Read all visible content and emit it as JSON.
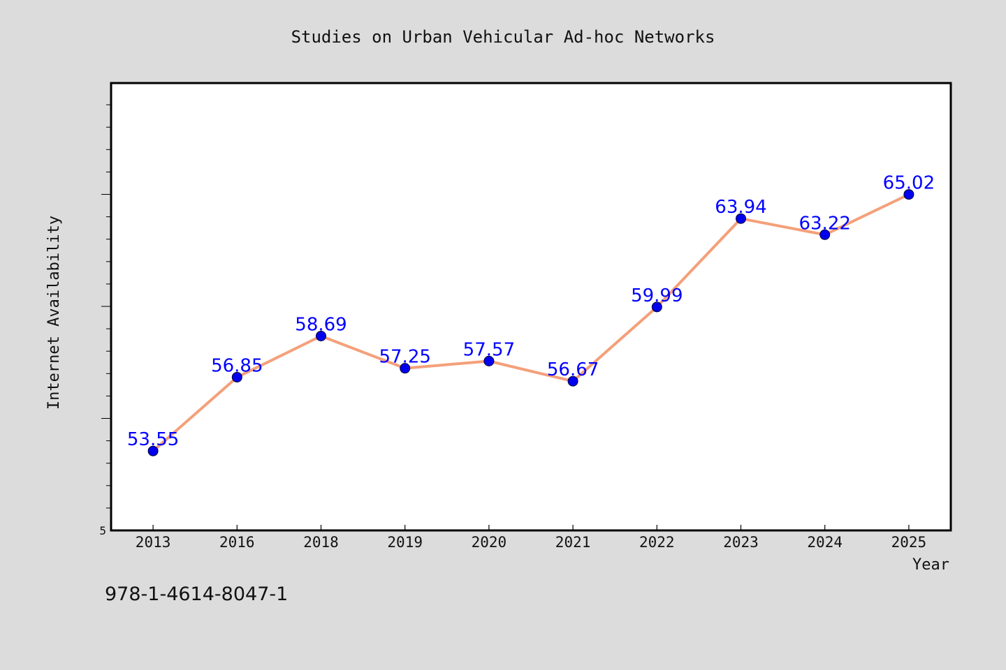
{
  "chart_data": {
    "type": "line",
    "title": "Studies on Urban Vehicular Ad-hoc Networks",
    "xlabel": "Year",
    "ylabel": "Internet Availability",
    "categories": [
      "2013",
      "2016",
      "2018",
      "2019",
      "2020",
      "2021",
      "2022",
      "2023",
      "2024",
      "2025"
    ],
    "series": [
      {
        "values": [
          53.55,
          56.85,
          58.69,
          57.25,
          57.57,
          56.67,
          59.99,
          63.94,
          63.22,
          65.02
        ],
        "labels": [
          "53.55",
          "56.85",
          "58.69",
          "57.25",
          "57.57",
          "56.67",
          "59.99",
          "63.94",
          "63.22",
          "65.02"
        ],
        "line_color": "#f4a07a",
        "marker_color": "#0000ee",
        "label_color": "#0000ff"
      }
    ],
    "ylim": [
      50,
      70
    ],
    "y_tick_labels": [
      "5"
    ],
    "grid": false,
    "legend": "none"
  },
  "footer": {
    "text": "978-1-4614-8047-1"
  },
  "colors": {
    "background": "#dcdcdc",
    "plot_background": "#ffffff",
    "axis": "#000000"
  }
}
